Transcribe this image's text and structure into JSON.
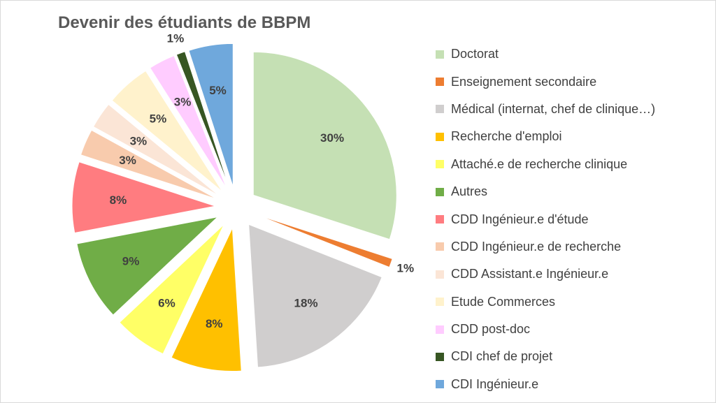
{
  "chart_data": {
    "type": "pie",
    "title": "Devenir des étudiants de BBPM",
    "legend_position": "right",
    "slices": [
      {
        "name": "Doctorat",
        "value": 30,
        "label": "30%",
        "color": "#c5e0b4"
      },
      {
        "name": "Enseignement secondaire",
        "value": 1,
        "label": "1%",
        "color": "#ed7d31"
      },
      {
        "name": "Médical (internat, chef de clinique…)",
        "value": 18,
        "label": "18%",
        "color": "#d0cece"
      },
      {
        "name": "Recherche d'emploi",
        "value": 8,
        "label": "8%",
        "color": "#ffc000"
      },
      {
        "name": "Attaché.e de recherche clinique",
        "value": 6,
        "label": "6%",
        "color": "#ffff66"
      },
      {
        "name": "Autres",
        "value": 9,
        "label": "9%",
        "color": "#70ad47"
      },
      {
        "name": "CDD Ingénieur.e d'étude",
        "value": 8,
        "label": "8%",
        "color": "#ff7c80"
      },
      {
        "name": "CDD Ingénieur.e de recherche",
        "value": 3,
        "label": "3%",
        "color": "#f8cbad"
      },
      {
        "name": "CDD Assistant.e Ingénieur.e",
        "value": 3,
        "label": "3%",
        "color": "#fbe5d6"
      },
      {
        "name": "Etude Commerces",
        "value": 5,
        "label": "5%",
        "color": "#fff2cc"
      },
      {
        "name": "CDD post-doc",
        "value": 3,
        "label": "3%",
        "color": "#ffccff"
      },
      {
        "name": "CDI chef de projet",
        "value": 1,
        "label": "1%",
        "color": "#375623"
      },
      {
        "name": "CDI Ingénieur.e",
        "value": 5,
        "label": "5%",
        "color": "#6fa8dc"
      }
    ]
  }
}
